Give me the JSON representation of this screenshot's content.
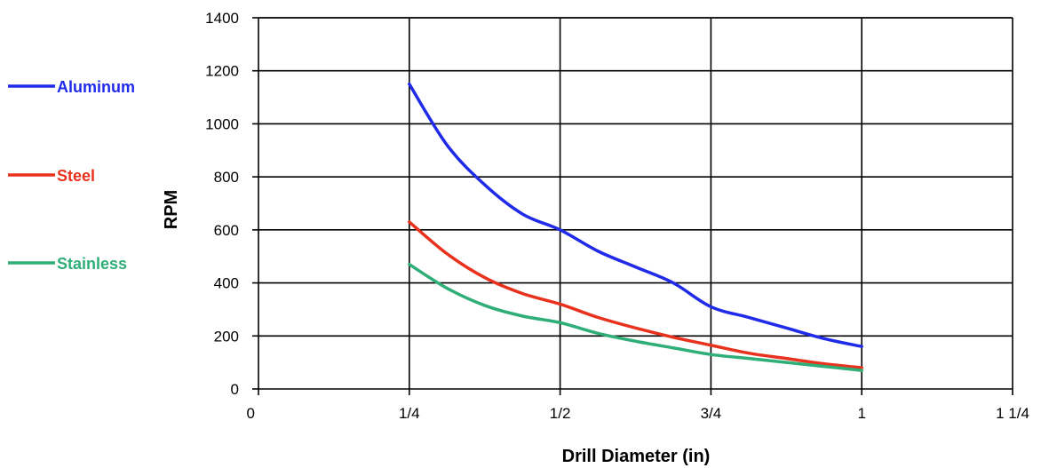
{
  "chart_data": {
    "type": "line",
    "title": "",
    "xlabel": "Drill Diameter (in)",
    "ylabel": "RPM",
    "xlim": [
      0,
      1.25
    ],
    "ylim": [
      0,
      1400
    ],
    "x_ticks": [
      {
        "value": 0,
        "label": "0"
      },
      {
        "value": 0.25,
        "label": "1/4"
      },
      {
        "value": 0.5,
        "label": "1/2"
      },
      {
        "value": 0.75,
        "label": "3/4"
      },
      {
        "value": 1,
        "label": "1"
      },
      {
        "value": 1.25,
        "label": "1 1/4"
      }
    ],
    "y_ticks": [
      {
        "value": 0,
        "label": "0"
      },
      {
        "value": 200,
        "label": "200"
      },
      {
        "value": 400,
        "label": "400"
      },
      {
        "value": 600,
        "label": "600"
      },
      {
        "value": 800,
        "label": "800"
      },
      {
        "value": 1000,
        "label": "1000"
      },
      {
        "value": 1200,
        "label": "1200"
      },
      {
        "value": 1400,
        "label": "1400"
      }
    ],
    "grid": true,
    "legend_position": "left",
    "series": [
      {
        "name": "Aluminum",
        "color": "#1f2be8",
        "x": [
          0.25,
          0.3125,
          0.375,
          0.4375,
          0.5,
          0.5625,
          0.625,
          0.6875,
          0.75,
          0.8125,
          0.875,
          0.9375,
          1.0
        ],
        "y": [
          1150,
          920,
          770,
          660,
          600,
          520,
          460,
          400,
          310,
          270,
          230,
          190,
          160
        ]
      },
      {
        "name": "Steel",
        "color": "#e8321e",
        "x": [
          0.25,
          0.3125,
          0.375,
          0.4375,
          0.5,
          0.5625,
          0.625,
          0.6875,
          0.75,
          0.8125,
          0.875,
          0.9375,
          1.0
        ],
        "y": [
          630,
          510,
          420,
          360,
          320,
          270,
          230,
          195,
          165,
          135,
          115,
          95,
          80
        ]
      },
      {
        "name": "Stainless",
        "color": "#2fae78",
        "x": [
          0.25,
          0.3125,
          0.375,
          0.4375,
          0.5,
          0.5625,
          0.625,
          0.6875,
          0.75,
          0.8125,
          0.875,
          0.9375,
          1.0
        ],
        "y": [
          470,
          380,
          315,
          275,
          250,
          210,
          180,
          155,
          130,
          115,
          100,
          85,
          70
        ]
      }
    ]
  }
}
